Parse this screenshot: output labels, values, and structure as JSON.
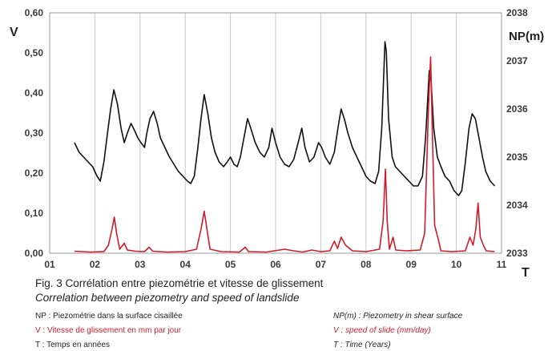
{
  "chart_data": {
    "type": "line",
    "title": "",
    "x_ticks": [
      "01",
      "02",
      "03",
      "04",
      "05",
      "06",
      "07",
      "08",
      "09",
      "10",
      "11"
    ],
    "xlabel": "T",
    "xlim": [
      1.0,
      11.0
    ],
    "y_left": {
      "label": "V",
      "ticks": [
        "0,00",
        "0,10",
        "0,20",
        "0,30",
        "0,40",
        "0,50",
        "0,60"
      ],
      "ylim": [
        0,
        0.6
      ]
    },
    "y_right": {
      "label": "NP(m)",
      "ticks": [
        "2033",
        "2034",
        "2035",
        "2036",
        "2037",
        "2038"
      ],
      "ylim": [
        2033,
        2038
      ]
    },
    "grid": "vertical",
    "series": [
      {
        "name": "NP",
        "axis": "right",
        "color": "#111111",
        "points": [
          [
            1.55,
            2035.3
          ],
          [
            1.65,
            2035.1
          ],
          [
            1.75,
            2035.0
          ],
          [
            1.85,
            2034.9
          ],
          [
            1.95,
            2034.8
          ],
          [
            2.05,
            2034.6
          ],
          [
            2.12,
            2034.5
          ],
          [
            2.2,
            2034.9
          ],
          [
            2.28,
            2035.5
          ],
          [
            2.35,
            2036.0
          ],
          [
            2.42,
            2036.4
          ],
          [
            2.5,
            2036.1
          ],
          [
            2.58,
            2035.6
          ],
          [
            2.65,
            2035.3
          ],
          [
            2.72,
            2035.5
          ],
          [
            2.8,
            2035.7
          ],
          [
            2.88,
            2035.55
          ],
          [
            2.95,
            2035.4
          ],
          [
            3.02,
            2035.3
          ],
          [
            3.1,
            2035.2
          ],
          [
            3.15,
            2035.5
          ],
          [
            3.22,
            2035.8
          ],
          [
            3.3,
            2035.95
          ],
          [
            3.38,
            2035.7
          ],
          [
            3.45,
            2035.4
          ],
          [
            3.55,
            2035.2
          ],
          [
            3.65,
            2035.0
          ],
          [
            3.75,
            2034.85
          ],
          [
            3.85,
            2034.7
          ],
          [
            3.95,
            2034.6
          ],
          [
            4.05,
            2034.5
          ],
          [
            4.12,
            2034.45
          ],
          [
            4.2,
            2034.6
          ],
          [
            4.28,
            2035.2
          ],
          [
            4.35,
            2035.8
          ],
          [
            4.42,
            2036.3
          ],
          [
            4.5,
            2035.9
          ],
          [
            4.58,
            2035.4
          ],
          [
            4.66,
            2035.1
          ],
          [
            4.75,
            2034.9
          ],
          [
            4.85,
            2034.8
          ],
          [
            4.93,
            2034.9
          ],
          [
            5.0,
            2035.0
          ],
          [
            5.08,
            2034.85
          ],
          [
            5.15,
            2034.8
          ],
          [
            5.22,
            2035.0
          ],
          [
            5.3,
            2035.4
          ],
          [
            5.38,
            2035.8
          ],
          [
            5.45,
            2035.6
          ],
          [
            5.55,
            2035.3
          ],
          [
            5.65,
            2035.1
          ],
          [
            5.75,
            2035.0
          ],
          [
            5.85,
            2035.2
          ],
          [
            5.92,
            2035.6
          ],
          [
            6.0,
            2035.3
          ],
          [
            6.1,
            2035.0
          ],
          [
            6.2,
            2034.85
          ],
          [
            6.3,
            2034.8
          ],
          [
            6.4,
            2034.95
          ],
          [
            6.5,
            2035.3
          ],
          [
            6.58,
            2035.6
          ],
          [
            6.65,
            2035.2
          ],
          [
            6.75,
            2034.9
          ],
          [
            6.85,
            2035.0
          ],
          [
            6.95,
            2035.3
          ],
          [
            7.02,
            2035.2
          ],
          [
            7.1,
            2035.0
          ],
          [
            7.2,
            2034.85
          ],
          [
            7.3,
            2035.1
          ],
          [
            7.38,
            2035.6
          ],
          [
            7.45,
            2036.0
          ],
          [
            7.52,
            2035.8
          ],
          [
            7.6,
            2035.5
          ],
          [
            7.7,
            2035.2
          ],
          [
            7.8,
            2035.0
          ],
          [
            7.9,
            2034.8
          ],
          [
            8.0,
            2034.6
          ],
          [
            8.1,
            2034.5
          ],
          [
            8.2,
            2034.45
          ],
          [
            8.28,
            2034.7
          ],
          [
            8.35,
            2035.6
          ],
          [
            8.42,
            2037.4
          ],
          [
            8.45,
            2037.2
          ],
          [
            8.5,
            2035.8
          ],
          [
            8.58,
            2035.0
          ],
          [
            8.65,
            2034.8
          ],
          [
            8.75,
            2034.7
          ],
          [
            8.85,
            2034.6
          ],
          [
            8.95,
            2034.5
          ],
          [
            9.05,
            2034.4
          ],
          [
            9.15,
            2034.4
          ],
          [
            9.25,
            2034.6
          ],
          [
            9.32,
            2035.4
          ],
          [
            9.4,
            2036.8
          ],
          [
            9.44,
            2036.6
          ],
          [
            9.5,
            2035.6
          ],
          [
            9.58,
            2035.0
          ],
          [
            9.66,
            2034.8
          ],
          [
            9.75,
            2034.6
          ],
          [
            9.85,
            2034.5
          ],
          [
            9.95,
            2034.3
          ],
          [
            10.05,
            2034.2
          ],
          [
            10.12,
            2034.3
          ],
          [
            10.2,
            2034.9
          ],
          [
            10.28,
            2035.6
          ],
          [
            10.35,
            2035.9
          ],
          [
            10.42,
            2035.8
          ],
          [
            10.5,
            2035.4
          ],
          [
            10.58,
            2035.0
          ],
          [
            10.65,
            2034.7
          ],
          [
            10.75,
            2034.5
          ],
          [
            10.85,
            2034.4
          ]
        ]
      },
      {
        "name": "V",
        "axis": "left",
        "color": "#d01c2a",
        "points": [
          [
            1.55,
            0.005
          ],
          [
            1.9,
            0.003
          ],
          [
            2.2,
            0.004
          ],
          [
            2.3,
            0.02
          ],
          [
            2.38,
            0.06
          ],
          [
            2.43,
            0.09
          ],
          [
            2.48,
            0.05
          ],
          [
            2.55,
            0.01
          ],
          [
            2.65,
            0.025
          ],
          [
            2.72,
            0.008
          ],
          [
            2.9,
            0.005
          ],
          [
            3.1,
            0.004
          ],
          [
            3.2,
            0.015
          ],
          [
            3.28,
            0.005
          ],
          [
            3.6,
            0.003
          ],
          [
            4.0,
            0.004
          ],
          [
            4.25,
            0.01
          ],
          [
            4.35,
            0.06
          ],
          [
            4.42,
            0.105
          ],
          [
            4.48,
            0.06
          ],
          [
            4.55,
            0.01
          ],
          [
            4.8,
            0.004
          ],
          [
            5.2,
            0.003
          ],
          [
            5.33,
            0.015
          ],
          [
            5.4,
            0.004
          ],
          [
            5.8,
            0.003
          ],
          [
            6.2,
            0.01
          ],
          [
            6.4,
            0.006
          ],
          [
            6.6,
            0.003
          ],
          [
            6.8,
            0.008
          ],
          [
            7.0,
            0.004
          ],
          [
            7.2,
            0.006
          ],
          [
            7.3,
            0.03
          ],
          [
            7.37,
            0.012
          ],
          [
            7.45,
            0.04
          ],
          [
            7.55,
            0.02
          ],
          [
            7.7,
            0.006
          ],
          [
            8.0,
            0.004
          ],
          [
            8.3,
            0.01
          ],
          [
            8.38,
            0.08
          ],
          [
            8.43,
            0.21
          ],
          [
            8.47,
            0.08
          ],
          [
            8.52,
            0.01
          ],
          [
            8.6,
            0.04
          ],
          [
            8.66,
            0.008
          ],
          [
            8.9,
            0.006
          ],
          [
            9.2,
            0.008
          ],
          [
            9.3,
            0.05
          ],
          [
            9.38,
            0.35
          ],
          [
            9.43,
            0.49
          ],
          [
            9.47,
            0.3
          ],
          [
            9.52,
            0.07
          ],
          [
            9.6,
            0.035
          ],
          [
            9.66,
            0.006
          ],
          [
            9.9,
            0.004
          ],
          [
            10.2,
            0.006
          ],
          [
            10.3,
            0.04
          ],
          [
            10.37,
            0.02
          ],
          [
            10.43,
            0.06
          ],
          [
            10.48,
            0.125
          ],
          [
            10.53,
            0.04
          ],
          [
            10.6,
            0.02
          ],
          [
            10.66,
            0.006
          ],
          [
            10.85,
            0.004
          ]
        ]
      }
    ]
  },
  "caption": {
    "title": "Fig. 3  Corrélation entre piezométrie et vitesse de glissement",
    "subtitle": "Correlation between piezometry and speed of landslide"
  },
  "legend": [
    {
      "fr": "NP : Piezométrie dans la surface cisaillée",
      "en": "NP(m) : Piezometry in shear surface",
      "color": "#222222"
    },
    {
      "fr": "V : Vitesse de glissement en mm par jour",
      "en": "V : speed of slide (mm/day)",
      "color": "#d01c2a"
    },
    {
      "fr": "T : Temps en années",
      "en": "T : Time (Years)",
      "color": "#222222"
    }
  ]
}
